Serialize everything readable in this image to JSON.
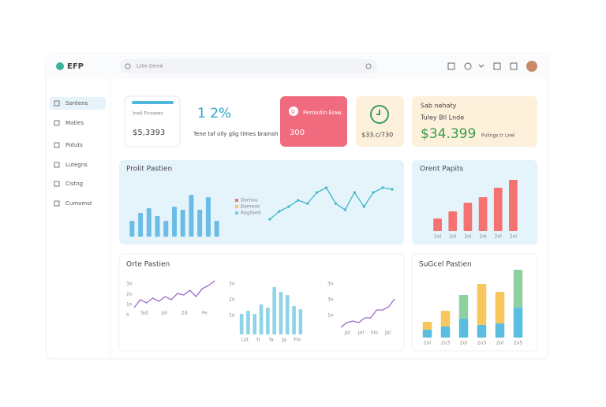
{
  "header": {
    "logo": "EFP",
    "search_placeholder": "Lstlo Eered"
  },
  "sidebar": {
    "items": [
      "Sontens",
      "Matles",
      "Potuts",
      "Lutegns",
      "Cistng",
      "Cumomst"
    ]
  },
  "stats": [
    {
      "label": "Ineil Pcosees",
      "value": "$5,3393"
    },
    {
      "value": "1 2%",
      "label": "Tene taf olly glig times brainsh"
    },
    {
      "icon": "g",
      "label": "Peroadin Eiaw",
      "value": "300"
    },
    {
      "value": "$33.c/730"
    },
    {
      "title": "Sab nehaty",
      "label": "Tuley Bll Lnde",
      "value": "$34.399",
      "note": "Pulings tr Lnel"
    }
  ],
  "charts": [
    {
      "title": "Prolit Pastien",
      "type": "bar",
      "color": "#6cbde6",
      "values": [
        20,
        30,
        36,
        26,
        20,
        38,
        34,
        53,
        34,
        50,
        20
      ],
      "legend": [
        "Dsrtiou",
        "Bameos",
        "Raglised"
      ],
      "legend_colors": [
        "#f07a7a",
        "#f5c96a",
        "#7ec8e3"
      ]
    },
    {
      "type": "line",
      "color": "#3fb8c9",
      "values": [
        4,
        14,
        20,
        28,
        24,
        38,
        44,
        24,
        16,
        38,
        20,
        38,
        44,
        42
      ]
    },
    {
      "title": "Orent Papits",
      "type": "bar",
      "color": "#f47272",
      "values": [
        16,
        25,
        36,
        43,
        55,
        65
      ],
      "categories": [
        "2ol",
        "2ol",
        "2ol",
        "2ol",
        "2ol",
        "2ol"
      ]
    },
    {
      "title": "Orte Pastien",
      "type": "line",
      "color": "#9b6bc9",
      "values": [
        0,
        10,
        6,
        12,
        8,
        14,
        10,
        18,
        16,
        22,
        14,
        24,
        28,
        34
      ],
      "yticks": [
        "3o",
        "2o",
        "1o",
        "o"
      ],
      "categories": [
        "Sid",
        "Jol",
        "2d",
        "Fe"
      ]
    },
    {
      "type": "bar",
      "color": "#8fd3e6",
      "values": [
        26,
        30,
        26,
        38,
        34,
        60,
        54,
        50,
        36,
        32
      ],
      "yticks": [
        "3o",
        "2o",
        "1o"
      ],
      "categories": [
        "Lid",
        "Ti",
        "Ta",
        "Ja",
        "Flo"
      ]
    },
    {
      "type": "line",
      "color": "#9b6bc9",
      "values": [
        0,
        6,
        8,
        6,
        12,
        12,
        22,
        22,
        26,
        36
      ],
      "yticks": [
        "3o",
        "3o",
        "1o"
      ],
      "categories": [
        "Jol",
        "Jol",
        "Flo",
        "Jol"
      ]
    },
    {
      "title": "SuGcel Pastien",
      "type": "stacked",
      "categories": [
        "2ol",
        "2o3",
        "2ol",
        "2o3",
        "2ol",
        "2o5"
      ],
      "series": [
        {
          "color": "#5bbde0",
          "values": [
            10,
            14,
            24,
            16,
            18,
            38
          ]
        },
        {
          "colors": [
            "#f7c65d",
            "#f7c65d",
            "#8ed1a0",
            "#f7c65d",
            "#f7c65d",
            "#8ed1a0"
          ],
          "values": [
            10,
            20,
            30,
            52,
            40,
            48
          ]
        }
      ]
    }
  ]
}
